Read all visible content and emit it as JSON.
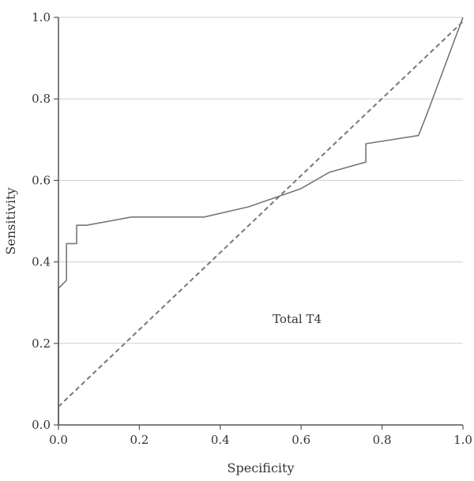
{
  "chart_data": {
    "type": "line",
    "title": "",
    "xlabel": "Specificity",
    "ylabel": "Sensitivity",
    "xlim": [
      0,
      1
    ],
    "ylim": [
      0,
      1
    ],
    "xticks": [
      "0.0",
      "0.2",
      "0.4",
      "0.6",
      "0.8",
      "1.0"
    ],
    "yticks": [
      "0.0",
      "0.2",
      "0.4",
      "0.6",
      "0.8",
      "1.0"
    ],
    "grid": "horizontal",
    "annotation": "Total T4",
    "series": [
      {
        "style": "solid",
        "color": "#777777",
        "x": [
          0.0,
          0.0,
          0.02,
          0.02,
          0.045,
          0.045,
          0.07,
          0.18,
          0.36,
          0.47,
          0.6,
          0.67,
          0.76,
          0.76,
          0.89,
          0.91,
          1.0
        ],
        "y": [
          0.0,
          0.335,
          0.355,
          0.445,
          0.445,
          0.49,
          0.49,
          0.51,
          0.51,
          0.535,
          0.58,
          0.62,
          0.645,
          0.69,
          0.71,
          0.76,
          1.0
        ]
      },
      {
        "style": "dashed",
        "color": "#777777",
        "x": [
          0.0,
          1.0
        ],
        "y": [
          0.045,
          0.99
        ]
      }
    ]
  }
}
